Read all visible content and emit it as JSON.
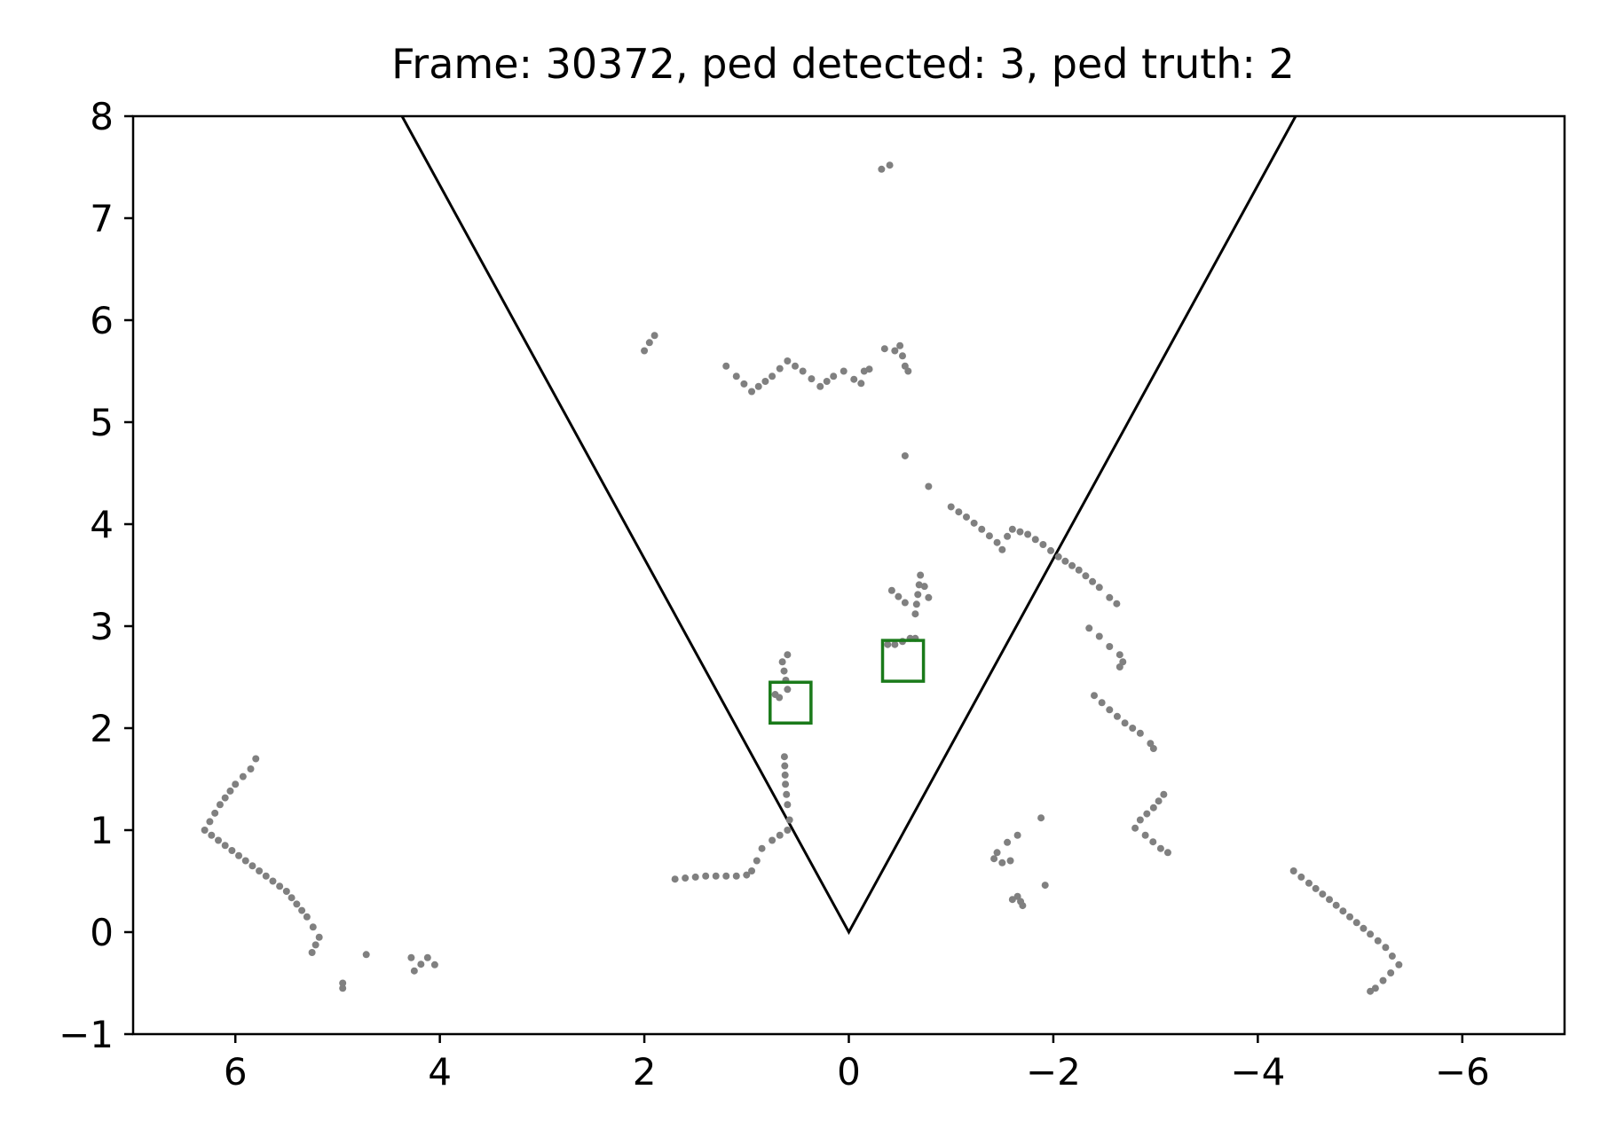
{
  "chart_data": {
    "type": "scatter",
    "title": "Frame: 30372, ped detected: 3, ped truth: 2",
    "xlabel": "",
    "ylabel": "",
    "xlim": [
      7,
      -7
    ],
    "ylim": [
      -1,
      8
    ],
    "x_inverted": true,
    "grid": false,
    "x_ticks": [
      6,
      4,
      2,
      0,
      -2,
      -4,
      -6
    ],
    "x_tick_labels": [
      "6",
      "4",
      "2",
      "0",
      "−2",
      "−4",
      "−6"
    ],
    "y_ticks": [
      -1,
      0,
      1,
      2,
      3,
      4,
      5,
      6,
      7,
      8
    ],
    "y_tick_labels": [
      "−1",
      "0",
      "1",
      "2",
      "3",
      "4",
      "5",
      "6",
      "7",
      "8"
    ],
    "colors": {
      "points": "#808080",
      "fov": "#000000",
      "detection_box": "#1a7a1a",
      "axes": "#000000"
    },
    "fov_polyline": [
      [
        4.37,
        8
      ],
      [
        0,
        0
      ],
      [
        -4.37,
        8
      ]
    ],
    "detection_boxes": [
      {
        "x_center": 0.57,
        "y_center": 2.25,
        "width": 0.4,
        "height": 0.4
      },
      {
        "x_center": -0.53,
        "y_center": 2.66,
        "width": 0.4,
        "height": 0.4
      }
    ],
    "point_segments": [
      [
        [
          5.8,
          1.7
        ],
        [
          5.85,
          1.6
        ],
        [
          6.0,
          1.45
        ],
        [
          6.15,
          1.25
        ],
        [
          6.3,
          1.0
        ],
        [
          6.1,
          0.85
        ],
        [
          5.9,
          0.7
        ],
        [
          5.7,
          0.55
        ],
        [
          5.5,
          0.4
        ],
        [
          5.3,
          0.15
        ],
        [
          5.18,
          -0.05
        ],
        [
          5.25,
          -0.2
        ]
      ],
      [
        [
          4.95,
          -0.5
        ],
        [
          4.95,
          -0.55
        ]
      ],
      [
        [
          4.72,
          -0.22
        ]
      ],
      [
        [
          4.28,
          -0.25
        ],
        [
          4.25,
          -0.38
        ],
        [
          4.12,
          -0.25
        ],
        [
          4.05,
          -0.32
        ]
      ],
      [
        [
          1.7,
          0.52
        ],
        [
          1.4,
          0.55
        ],
        [
          1.1,
          0.55
        ],
        [
          1.0,
          0.56
        ],
        [
          0.95,
          0.6
        ],
        [
          0.9,
          0.7
        ],
        [
          0.85,
          0.82
        ],
        [
          0.75,
          0.9
        ],
        [
          0.6,
          1.0
        ],
        [
          0.58,
          1.1
        ],
        [
          0.6,
          1.25
        ],
        [
          0.62,
          1.45
        ],
        [
          0.63,
          1.72
        ]
      ],
      [
        [
          0.72,
          2.33
        ],
        [
          0.68,
          2.3
        ],
        [
          0.6,
          2.38
        ],
        [
          0.65,
          2.65
        ],
        [
          0.6,
          2.72
        ]
      ],
      [
        [
          2.0,
          5.7
        ],
        [
          1.95,
          5.78
        ],
        [
          1.9,
          5.85
        ]
      ],
      [
        [
          1.2,
          5.55
        ],
        [
          1.1,
          5.45
        ],
        [
          0.95,
          5.3
        ],
        [
          0.75,
          5.45
        ],
        [
          0.6,
          5.6
        ],
        [
          0.45,
          5.5
        ],
        [
          0.28,
          5.35
        ],
        [
          0.15,
          5.45
        ],
        [
          0.05,
          5.5
        ],
        [
          -0.05,
          5.42
        ],
        [
          -0.12,
          5.38
        ],
        [
          -0.15,
          5.5
        ],
        [
          -0.2,
          5.52
        ]
      ],
      [
        [
          -0.35,
          5.72
        ],
        [
          -0.45,
          5.7
        ],
        [
          -0.5,
          5.75
        ],
        [
          -0.55,
          5.55
        ],
        [
          -0.58,
          5.5
        ]
      ],
      [
        [
          -0.32,
          7.48
        ],
        [
          -0.4,
          7.52
        ]
      ],
      [
        [
          -0.55,
          4.67
        ]
      ],
      [
        [
          -0.78,
          4.37
        ]
      ],
      [
        [
          -1.0,
          4.17
        ],
        [
          -1.15,
          4.07
        ],
        [
          -1.3,
          3.95
        ],
        [
          -1.45,
          3.82
        ],
        [
          -1.5,
          3.75
        ]
      ],
      [
        [
          -1.55,
          3.88
        ],
        [
          -1.6,
          3.95
        ],
        [
          -1.75,
          3.9
        ],
        [
          -1.9,
          3.8
        ],
        [
          -2.05,
          3.68
        ],
        [
          -2.25,
          3.55
        ],
        [
          -2.45,
          3.38
        ],
        [
          -2.55,
          3.28
        ],
        [
          -2.62,
          3.22
        ]
      ],
      [
        [
          -0.42,
          3.35
        ],
        [
          -0.55,
          3.23
        ],
        [
          -0.65,
          3.12
        ],
        [
          -0.7,
          3.5
        ],
        [
          -0.78,
          3.28
        ]
      ],
      [
        [
          -0.38,
          2.82
        ],
        [
          -0.45,
          2.82
        ],
        [
          -0.6,
          2.88
        ],
        [
          -0.65,
          2.88
        ]
      ],
      [
        [
          -2.35,
          2.98
        ],
        [
          -2.45,
          2.9
        ],
        [
          -2.55,
          2.8
        ],
        [
          -2.65,
          2.72
        ],
        [
          -2.68,
          2.65
        ],
        [
          -2.65,
          2.6
        ]
      ],
      [
        [
          -2.4,
          2.32
        ],
        [
          -2.55,
          2.18
        ],
        [
          -2.7,
          2.05
        ],
        [
          -2.85,
          1.95
        ],
        [
          -2.95,
          1.85
        ],
        [
          -2.98,
          1.8
        ]
      ],
      [
        [
          -3.08,
          1.35
        ],
        [
          -2.98,
          1.22
        ],
        [
          -2.85,
          1.1
        ],
        [
          -2.8,
          1.02
        ],
        [
          -2.9,
          0.95
        ],
        [
          -3.05,
          0.82
        ],
        [
          -3.12,
          0.78
        ]
      ],
      [
        [
          -1.88,
          1.12
        ]
      ],
      [
        [
          -1.65,
          0.95
        ],
        [
          -1.55,
          0.88
        ],
        [
          -1.45,
          0.78
        ],
        [
          -1.42,
          0.72
        ],
        [
          -1.5,
          0.68
        ],
        [
          -1.58,
          0.7
        ]
      ],
      [
        [
          -1.6,
          0.32
        ],
        [
          -1.65,
          0.35
        ],
        [
          -1.68,
          0.3
        ],
        [
          -1.7,
          0.26
        ]
      ],
      [
        [
          -1.92,
          0.46
        ]
      ],
      [
        [
          -4.35,
          0.6
        ],
        [
          -4.5,
          0.48
        ],
        [
          -4.7,
          0.32
        ],
        [
          -4.9,
          0.15
        ],
        [
          -5.1,
          -0.02
        ],
        [
          -5.25,
          -0.15
        ],
        [
          -5.38,
          -0.32
        ],
        [
          -5.3,
          -0.4
        ],
        [
          -5.15,
          -0.55
        ],
        [
          -5.1,
          -0.58
        ]
      ]
    ]
  }
}
